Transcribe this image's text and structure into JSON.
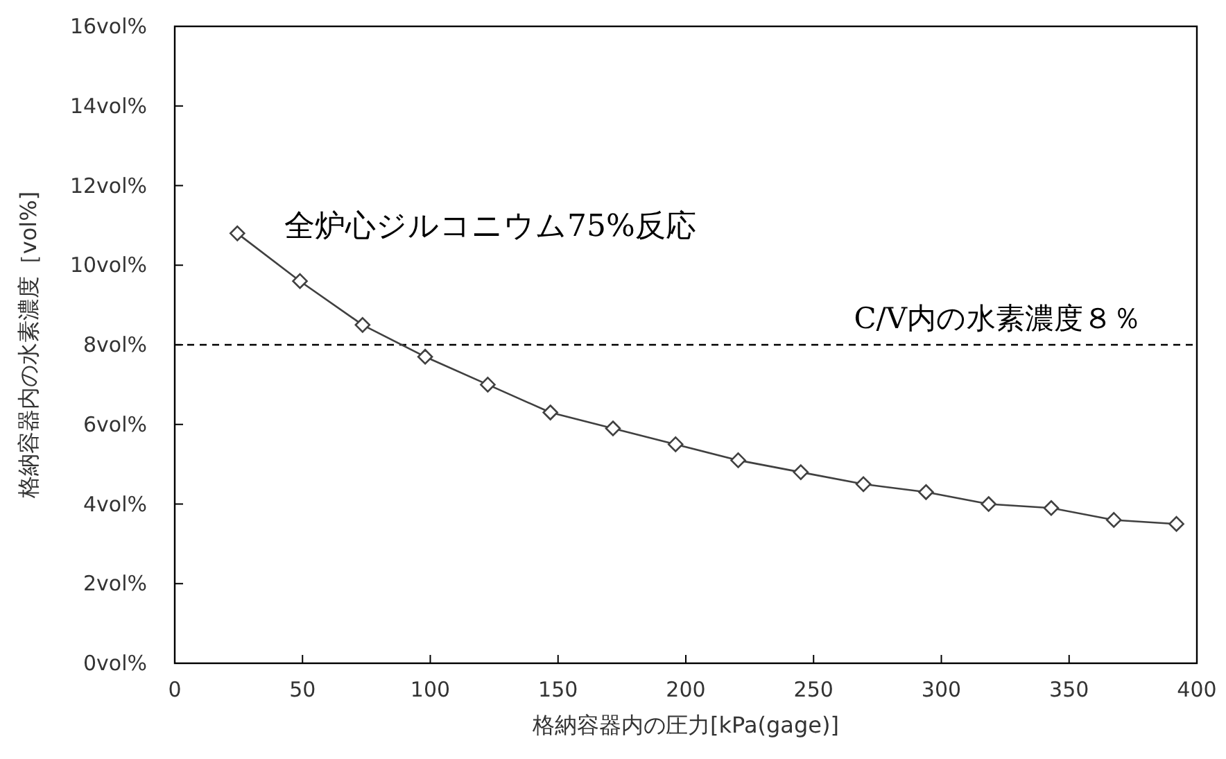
{
  "chart_data": {
    "type": "line",
    "xlabel": "格納容器内の圧力[kPa(gage)]",
    "ylabel": "格納容器内の水素濃度［vol%]",
    "x": [
      24.5,
      49,
      73.5,
      98,
      122.5,
      147,
      171.5,
      196,
      220.5,
      245,
      269.5,
      294,
      318.5,
      343,
      367.5,
      392
    ],
    "series": [
      {
        "color": "#404040",
        "values": [
          10.8,
          9.6,
          8.5,
          7.7,
          7.0,
          6.3,
          5.9,
          5.5,
          5.1,
          4.8,
          4.5,
          4.3,
          4.0,
          3.9,
          3.6,
          3.5
        ]
      }
    ],
    "marker": "diamond",
    "line_style": "solid",
    "xlim": [
      0,
      400
    ],
    "xticks": [
      0,
      50,
      100,
      150,
      200,
      250,
      300,
      350,
      400
    ],
    "ylim": [
      0,
      16
    ],
    "yticks": [
      {
        "value": 0,
        "label": "0vol%"
      },
      {
        "value": 2,
        "label": "2vol%"
      },
      {
        "value": 4,
        "label": "4vol%"
      },
      {
        "value": 6,
        "label": "6vol%"
      },
      {
        "value": 8,
        "label": "8vol%"
      },
      {
        "value": 10,
        "label": "10vol%"
      },
      {
        "value": 12,
        "label": "12vol%"
      },
      {
        "value": 14,
        "label": "14vol%"
      },
      {
        "value": 16,
        "label": "16vol%"
      }
    ],
    "ref_lines": [
      {
        "axis": "y",
        "value": 8,
        "label": "C/V内の水素濃度８％",
        "color": "#000000",
        "line_style": "dashed"
      }
    ],
    "annotations": [
      "全炉心ジルコニウム75%反応"
    ]
  }
}
